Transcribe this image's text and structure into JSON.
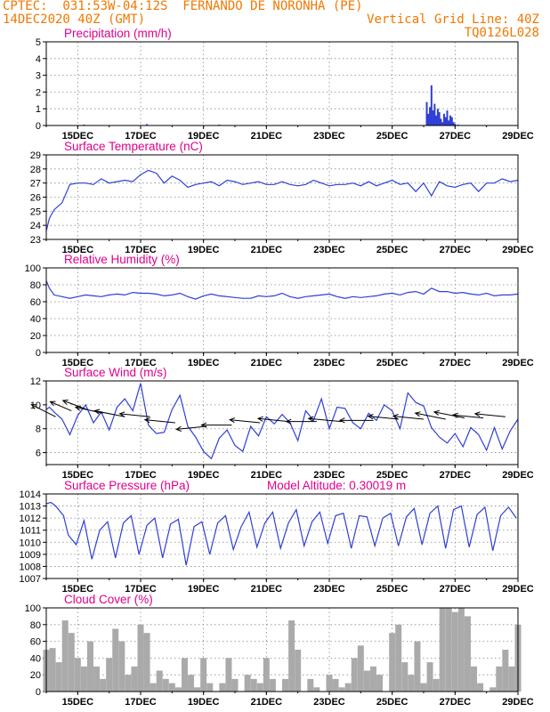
{
  "header": {
    "line1": "CPTEC:  031:53W-04:12S  FERNANDO DE NORONHA (PE)",
    "line2_left": "14DEC2020 40Z (GMT)",
    "line2_right": "Vertical Grid Line: 40Z",
    "line3_right": "TQ0126L028"
  },
  "colors": {
    "header": "#f07800",
    "title": "#e0008c",
    "series": "#2f3fd6",
    "cloud": "#aaaaaa"
  },
  "x_ticks": [
    "15DEC",
    "17DEC",
    "19DEC",
    "21DEC",
    "23DEC",
    "25DEC",
    "27DEC",
    "29DEC"
  ],
  "chart_data": [
    {
      "type": "bar",
      "title": "Precipitation (mm/h)",
      "ylim": [
        0,
        5
      ],
      "yticks": [
        "0",
        "1",
        "2",
        "3",
        "4",
        "5"
      ],
      "x": [
        1.2,
        3.2,
        5.5,
        12.1,
        12.15,
        12.2,
        12.25,
        12.3,
        12.35,
        12.4,
        12.45,
        12.5,
        12.55,
        12.6,
        12.65,
        12.7,
        12.75,
        12.8,
        12.85,
        12.9,
        12.95,
        13.0,
        13.1
      ],
      "values": [
        0.05,
        0.08,
        0.05,
        1.4,
        0.7,
        1.1,
        2.4,
        0.9,
        1.3,
        0.6,
        1.0,
        0.8,
        0.4,
        0.2,
        0.7,
        0.5,
        0.9,
        0.3,
        0.6,
        0.5,
        0.2,
        0.1,
        0.05
      ]
    },
    {
      "type": "line",
      "title": "Surface Temperature (nC)",
      "ylim": [
        23,
        29
      ],
      "yticks": [
        "23",
        "24",
        "25",
        "26",
        "27",
        "28",
        "29"
      ],
      "x": [
        0,
        0.1,
        0.25,
        0.5,
        0.75,
        1.0,
        1.25,
        1.5,
        1.75,
        2.0,
        2.25,
        2.5,
        2.75,
        3.0,
        3.25,
        3.5,
        3.75,
        4.0,
        4.25,
        4.5,
        4.75,
        5.0,
        5.25,
        5.5,
        5.75,
        6.0,
        6.25,
        6.5,
        6.75,
        7.0,
        7.25,
        7.5,
        7.75,
        8.0,
        8.25,
        8.5,
        8.75,
        9.0,
        9.25,
        9.5,
        9.75,
        10.0,
        10.25,
        10.5,
        10.75,
        11.0,
        11.25,
        11.5,
        11.75,
        12.0,
        12.25,
        12.5,
        12.75,
        13.0,
        13.25,
        13.5,
        13.75,
        14.0,
        14.25,
        14.5,
        14.75,
        15.0
      ],
      "values": [
        23.6,
        24.5,
        25.1,
        25.6,
        26.9,
        27.0,
        27.0,
        26.9,
        27.3,
        27.0,
        27.1,
        27.2,
        27.1,
        27.6,
        27.9,
        27.7,
        27.0,
        27.5,
        27.2,
        26.7,
        26.9,
        27.0,
        27.1,
        26.8,
        27.2,
        27.1,
        26.9,
        27.0,
        27.1,
        26.9,
        26.9,
        27.1,
        26.9,
        26.8,
        26.9,
        27.2,
        27.0,
        26.8,
        26.9,
        26.9,
        27.0,
        26.8,
        27.1,
        26.8,
        27.0,
        27.2,
        26.9,
        27.0,
        26.4,
        27.0,
        26.1,
        27.1,
        26.8,
        26.7,
        26.9,
        27.0,
        26.4,
        27.0,
        27.0,
        27.3,
        27.1,
        27.2
      ]
    },
    {
      "type": "line",
      "title": "Relative Humidity (%)",
      "ylim": [
        0,
        100
      ],
      "yticks": [
        "0",
        "20",
        "40",
        "60",
        "80",
        "100"
      ],
      "x": [
        0,
        0.1,
        0.25,
        0.5,
        0.75,
        1.0,
        1.25,
        1.5,
        1.75,
        2.0,
        2.25,
        2.5,
        2.75,
        3.0,
        3.25,
        3.5,
        3.75,
        4.0,
        4.25,
        4.5,
        4.75,
        5.0,
        5.25,
        5.5,
        5.75,
        6.0,
        6.25,
        6.5,
        6.75,
        7.0,
        7.25,
        7.5,
        7.75,
        8.0,
        8.25,
        8.5,
        8.75,
        9.0,
        9.25,
        9.5,
        9.75,
        10.0,
        10.25,
        10.5,
        10.75,
        11.0,
        11.25,
        11.5,
        11.75,
        12.0,
        12.25,
        12.5,
        12.75,
        13.0,
        13.25,
        13.5,
        13.75,
        14.0,
        14.25,
        14.5,
        14.75,
        15.0
      ],
      "values": [
        85,
        76,
        68,
        66,
        64,
        66,
        68,
        67,
        66,
        68,
        69,
        68,
        71,
        70,
        70,
        69,
        67,
        68,
        70,
        66,
        63,
        67,
        69,
        67,
        66,
        65,
        64,
        64,
        67,
        66,
        67,
        70,
        66,
        64,
        66,
        67,
        68,
        69,
        66,
        64,
        66,
        65,
        66,
        67,
        69,
        70,
        68,
        71,
        72,
        69,
        76,
        72,
        72,
        70,
        71,
        69,
        68,
        70,
        67,
        68,
        68,
        69
      ]
    },
    {
      "type": "line",
      "title": "Surface Wind (m/s)",
      "ylim": [
        5,
        12
      ],
      "yticks": [
        "6",
        "8",
        "10",
        "12"
      ],
      "x": [
        0,
        0.1,
        0.25,
        0.5,
        0.75,
        1.0,
        1.25,
        1.5,
        1.75,
        2.0,
        2.25,
        2.5,
        2.75,
        3.0,
        3.25,
        3.5,
        3.75,
        4.0,
        4.25,
        4.5,
        4.75,
        5.0,
        5.25,
        5.5,
        5.75,
        6.0,
        6.25,
        6.5,
        6.75,
        7.0,
        7.25,
        7.5,
        7.75,
        8.0,
        8.25,
        8.5,
        8.75,
        9.0,
        9.25,
        9.5,
        9.75,
        10.0,
        10.25,
        10.5,
        10.75,
        11.0,
        11.25,
        11.5,
        11.75,
        12.0,
        12.25,
        12.5,
        12.75,
        13.0,
        13.25,
        13.5,
        13.75,
        14.0,
        14.25,
        14.5,
        14.75,
        15.0
      ],
      "values": [
        9.6,
        9.8,
        9.4,
        8.8,
        7.5,
        9.1,
        10.0,
        8.5,
        9.4,
        7.9,
        9.8,
        10.5,
        9.5,
        11.8,
        8.3,
        7.6,
        7.7,
        9.6,
        10.8,
        8.2,
        7.3,
        6.1,
        5.5,
        7.2,
        7.9,
        6.6,
        6.1,
        8.2,
        7.4,
        9.0,
        8.4,
        9.2,
        8.5,
        7.0,
        9.5,
        8.7,
        10.5,
        8.0,
        9.8,
        9.7,
        8.5,
        8.0,
        9.3,
        8.7,
        10.0,
        9.5,
        8.0,
        11.0,
        10.2,
        9.9,
        8.1,
        7.3,
        6.8,
        7.6,
        6.5,
        8.1,
        7.5,
        6.2,
        8.1,
        6.3,
        7.8,
        8.8
      ],
      "vectors_x": [
        0.3,
        0.8,
        1.3,
        1.8,
        2.5,
        3.3,
        4.1,
        5.1,
        5.9,
        6.8,
        7.7,
        8.6,
        9.4,
        10.4,
        11.2,
        12.0,
        12.7,
        13.3,
        13.9,
        14.6
      ],
      "vectors_y": [
        9.0,
        9.5,
        9.6,
        9.3,
        9.0,
        9.0,
        8.5,
        8.2,
        8.3,
        8.5,
        8.6,
        8.6,
        8.6,
        8.7,
        8.8,
        8.8,
        8.8,
        8.9,
        8.9,
        9.0
      ],
      "vectors_u": [
        -8,
        -7,
        -8,
        -9,
        -10,
        -10,
        -10,
        -10,
        -10,
        -10,
        -10,
        -10,
        -11,
        -11,
        -10,
        -10,
        -10,
        -10,
        -10,
        -10
      ],
      "vectors_v": [
        4,
        3,
        3,
        2,
        2,
        1,
        1,
        -1,
        0,
        1,
        1,
        0,
        1,
        0,
        1,
        1,
        2,
        2,
        1,
        1
      ]
    },
    {
      "type": "line",
      "title": "Surface Pressure (hPa)",
      "annotation": "Model Altitude: 0.30019 m",
      "ylim": [
        1007,
        1014
      ],
      "yticks": [
        "1007",
        "1008",
        "1009",
        "1010",
        "1011",
        "1012",
        "1013",
        "1014"
      ],
      "x": [
        0,
        0.15,
        0.3,
        0.55,
        0.7,
        0.95,
        1.2,
        1.45,
        1.7,
        1.95,
        2.2,
        2.45,
        2.7,
        2.95,
        3.2,
        3.45,
        3.7,
        3.95,
        4.2,
        4.45,
        4.7,
        4.95,
        5.2,
        5.45,
        5.7,
        5.95,
        6.2,
        6.45,
        6.7,
        6.95,
        7.2,
        7.45,
        7.7,
        7.95,
        8.2,
        8.45,
        8.7,
        8.95,
        9.2,
        9.45,
        9.7,
        9.95,
        10.2,
        10.45,
        10.7,
        10.95,
        11.2,
        11.45,
        11.7,
        11.95,
        12.2,
        12.45,
        12.7,
        12.95,
        13.2,
        13.45,
        13.7,
        13.95,
        14.2,
        14.45,
        14.7,
        14.95
      ],
      "values": [
        1013.2,
        1013.3,
        1013.0,
        1012.2,
        1010.6,
        1009.8,
        1011.8,
        1008.6,
        1011.0,
        1011.7,
        1008.7,
        1011.6,
        1012.2,
        1009.0,
        1011.4,
        1012.0,
        1008.7,
        1011.5,
        1011.9,
        1008.1,
        1011.3,
        1011.7,
        1009.0,
        1011.6,
        1012.2,
        1009.4,
        1011.3,
        1012.5,
        1009.6,
        1011.6,
        1012.5,
        1009.5,
        1011.6,
        1012.7,
        1009.7,
        1011.7,
        1012.5,
        1009.9,
        1012.2,
        1012.4,
        1009.5,
        1012.2,
        1012.1,
        1009.7,
        1012.0,
        1012.4,
        1009.7,
        1012.1,
        1012.8,
        1009.8,
        1012.4,
        1013.0,
        1009.5,
        1012.7,
        1013.0,
        1009.6,
        1012.3,
        1012.9,
        1009.3,
        1012.2,
        1012.9,
        1012.0
      ]
    },
    {
      "type": "bar",
      "title": "Cloud Cover (%)",
      "ylim": [
        0,
        100
      ],
      "yticks": [
        "0",
        "20",
        "40",
        "60",
        "80",
        "100"
      ],
      "x": [
        0,
        0.2,
        0.4,
        0.6,
        0.8,
        1.0,
        1.2,
        1.4,
        1.6,
        1.8,
        2.0,
        2.2,
        2.4,
        2.6,
        2.8,
        3.0,
        3.2,
        3.4,
        3.6,
        3.8,
        4.0,
        4.2,
        4.4,
        4.6,
        4.8,
        5.0,
        5.2,
        5.4,
        5.6,
        5.8,
        6.0,
        6.2,
        6.4,
        6.6,
        6.8,
        7.0,
        7.2,
        7.4,
        7.6,
        7.8,
        8.0,
        8.2,
        8.4,
        8.6,
        8.8,
        9.0,
        9.2,
        9.4,
        9.6,
        9.8,
        10.0,
        10.2,
        10.4,
        10.6,
        10.8,
        11.0,
        11.2,
        11.4,
        11.6,
        11.8,
        12.0,
        12.2,
        12.4,
        12.6,
        12.8,
        13.0,
        13.2,
        13.4,
        13.6,
        13.8,
        14.0,
        14.2,
        14.4,
        14.6,
        14.8,
        15.0
      ],
      "values": [
        50,
        52,
        35,
        85,
        70,
        40,
        30,
        60,
        30,
        15,
        40,
        75,
        60,
        20,
        30,
        80,
        70,
        10,
        25,
        15,
        10,
        5,
        40,
        20,
        5,
        40,
        10,
        0,
        10,
        40,
        15,
        0,
        20,
        15,
        10,
        40,
        15,
        0,
        15,
        85,
        50,
        0,
        15,
        5,
        0,
        20,
        15,
        5,
        10,
        40,
        55,
        25,
        30,
        20,
        0,
        70,
        80,
        35,
        20,
        60,
        10,
        35,
        15,
        100,
        100,
        95,
        100,
        90,
        30,
        10,
        0,
        5,
        30,
        50,
        30,
        80
      ]
    }
  ]
}
